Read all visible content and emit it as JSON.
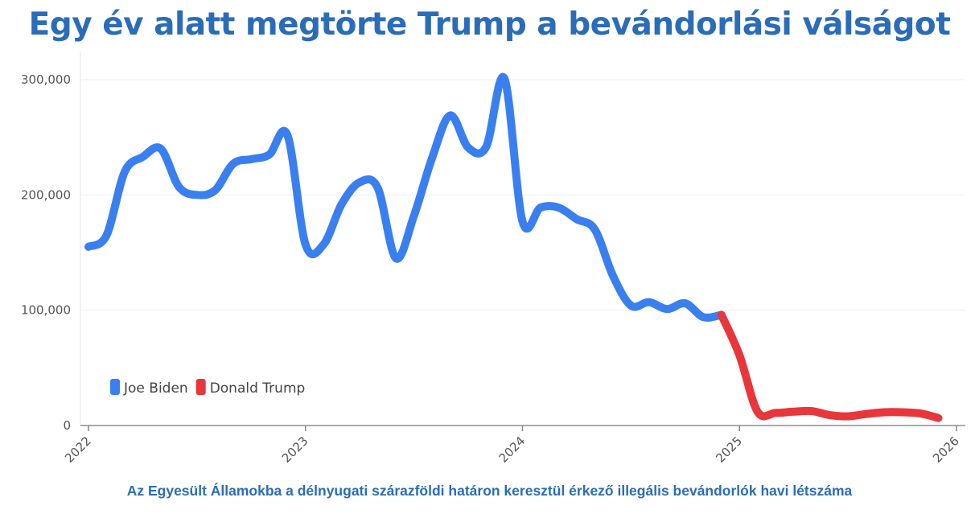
{
  "title": "Egy év alatt megtörte Trump a bevándorlási válságot",
  "caption": "Az Egyesült Államokba a délnyugati szárazföldi határon keresztül érkező illegális bevándorlók havi létszáma",
  "chart_data": {
    "type": "line",
    "title": "Egy év alatt megtörte Trump a bevándorlási válságot",
    "xlabel": "",
    "ylabel": "",
    "ylim": [
      0,
      300000
    ],
    "xlim": [
      "2022-01",
      "2026-01"
    ],
    "y_ticks": [
      "0",
      "100,000",
      "200,000",
      "300,000"
    ],
    "x_ticks": [
      "2022",
      "2023",
      "2024",
      "2025",
      "2026"
    ],
    "grid": true,
    "legend": "bottom-left",
    "series": [
      {
        "name": "Joe Biden",
        "color": "#3a7ff0",
        "x": [
          "2022-01",
          "2022-02",
          "2022-03",
          "2022-04",
          "2022-05",
          "2022-06",
          "2022-07",
          "2022-08",
          "2022-09",
          "2022-10",
          "2022-11",
          "2022-12",
          "2023-01",
          "2023-02",
          "2023-03",
          "2023-04",
          "2023-05",
          "2023-06",
          "2023-07",
          "2023-08",
          "2023-09",
          "2023-10",
          "2023-11",
          "2023-12",
          "2024-01",
          "2024-02",
          "2024-03",
          "2024-04",
          "2024-05",
          "2024-06",
          "2024-07",
          "2024-08",
          "2024-09",
          "2024-10",
          "2024-11",
          "2024-12"
        ],
        "values": [
          155000,
          165000,
          220000,
          233000,
          240000,
          207000,
          200000,
          204000,
          227000,
          231000,
          235000,
          252000,
          157000,
          157000,
          192000,
          211000,
          206000,
          145000,
          182000,
          232000,
          269000,
          241000,
          242000,
          301000,
          177000,
          189000,
          189000,
          179000,
          170000,
          130000,
          104000,
          107000,
          101000,
          106000,
          94000,
          96000
        ]
      },
      {
        "name": "Donald Trump",
        "color": "#e8363a",
        "x": [
          "2024-12",
          "2025-01",
          "2025-02",
          "2025-03",
          "2025-04",
          "2025-05",
          "2025-06",
          "2025-07",
          "2025-08",
          "2025-09",
          "2025-10",
          "2025-11",
          "2025-12"
        ],
        "values": [
          96000,
          61000,
          12000,
          11000,
          12000,
          12500,
          9000,
          8000,
          10000,
          11500,
          11500,
          10500,
          6500
        ]
      }
    ]
  }
}
